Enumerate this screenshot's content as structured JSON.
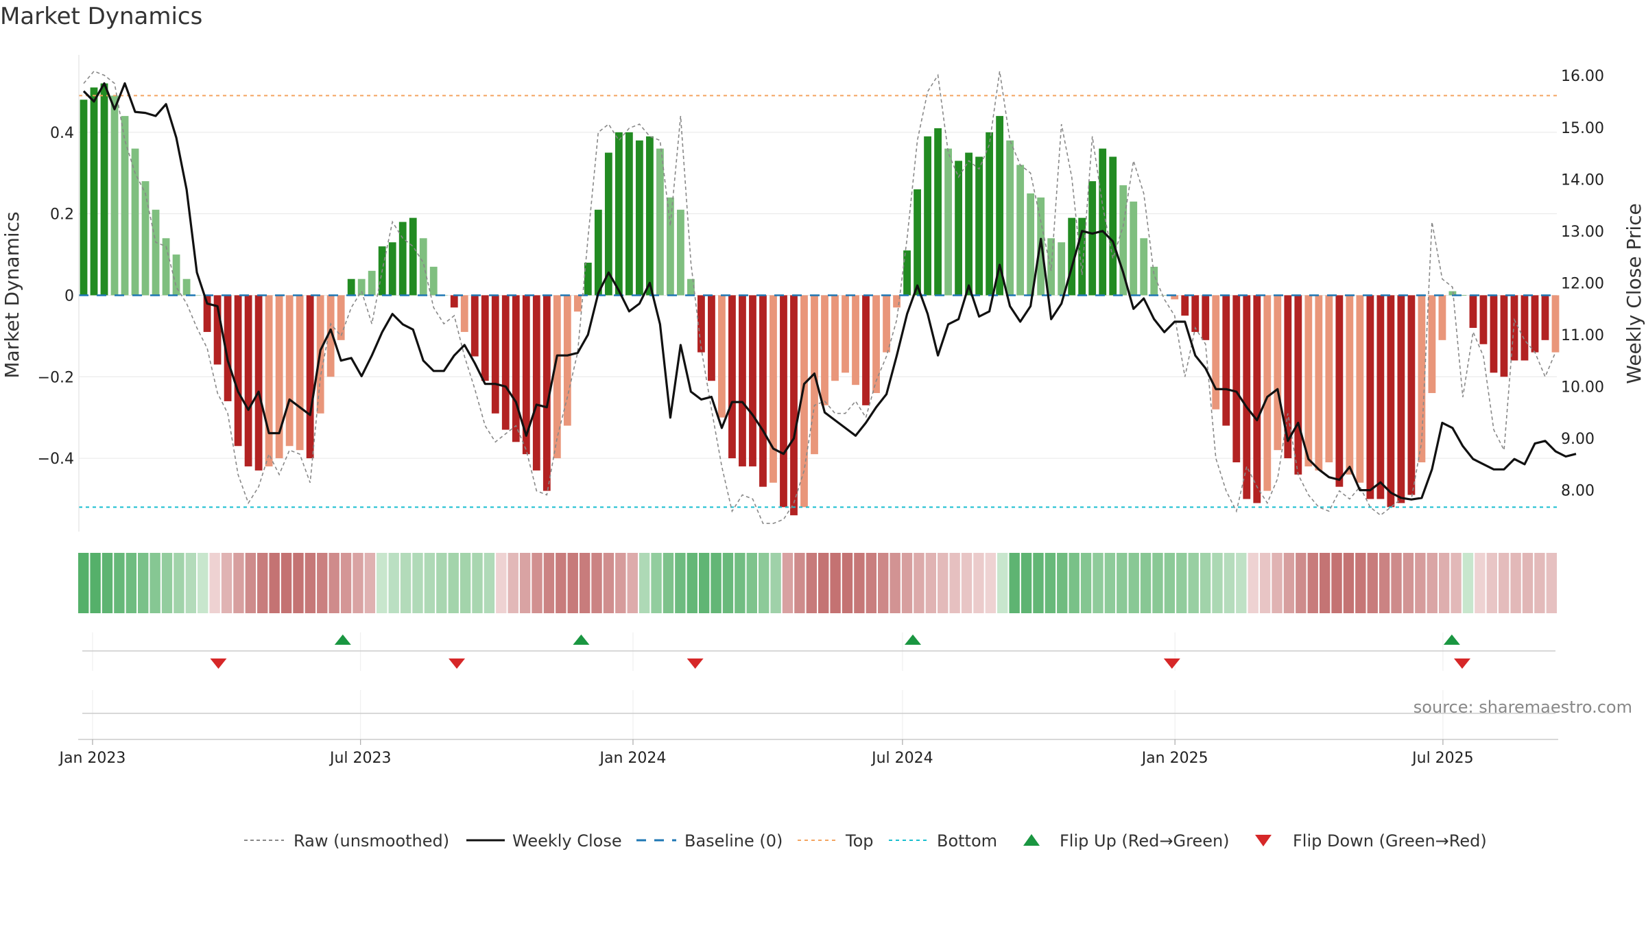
{
  "chart_data": {
    "type": "bar",
    "title": "Market Dynamics",
    "ylabel_left": "Market Dynamics",
    "ylabel_right": "Weekly Close Price",
    "left_axis": {
      "ylim": [
        -0.58,
        0.59
      ],
      "ticks": [
        0.4,
        0.2,
        0,
        -0.2,
        -0.4
      ],
      "tick_labels": [
        "0.4",
        "0.2",
        "0",
        "−0.2",
        "−0.4"
      ]
    },
    "right_axis": {
      "ylim": [
        7.2,
        16.4
      ],
      "ticks": [
        16,
        15,
        14,
        13,
        12,
        11,
        10,
        9,
        8
      ],
      "tick_labels": [
        "16.00",
        "15.00",
        "14.00",
        "13.00",
        "12.00",
        "11.00",
        "10.00",
        "9.00",
        "8.00"
      ]
    },
    "x_axis": {
      "start": "2022-12-26",
      "end": "2025-09-15",
      "tick_labels": [
        "Jan 2023",
        "Jul 2023",
        "Jan 2024",
        "Jul 2024",
        "Jan 2025",
        "Jul 2025"
      ],
      "tick_dates": [
        "2023-01-01",
        "2023-07-01",
        "2024-01-01",
        "2024-07-01",
        "2025-01-01",
        "2025-07-01"
      ]
    },
    "top_line": 0.49,
    "bottom_line": -0.52,
    "baseline": 0,
    "colors": {
      "strong_green": "#228B22",
      "light_green": "#7FBF7F",
      "strong_red": "#B22222",
      "light_red": "#E9967A",
      "weekly_close": "#111111",
      "raw": "#888888",
      "baseline": "#1F77B4",
      "top": "#F4A460",
      "bottom": "#17BECF",
      "flip_up": "#1A9641",
      "flip_down": "#D62728"
    },
    "bar_values": [
      0.48,
      0.51,
      0.52,
      0.49,
      0.44,
      0.36,
      0.28,
      0.21,
      0.14,
      0.1,
      0.04,
      0,
      -0.09,
      -0.17,
      -0.26,
      -0.37,
      -0.42,
      -0.43,
      -0.42,
      -0.4,
      -0.37,
      -0.38,
      -0.4,
      -0.29,
      -0.2,
      -0.11,
      0.04,
      0.04,
      0.06,
      0.12,
      0.13,
      0.18,
      0.19,
      0.14,
      0.07,
      0,
      -0.03,
      -0.09,
      -0.15,
      -0.21,
      -0.29,
      -0.33,
      -0.36,
      -0.39,
      -0.43,
      -0.48,
      -0.4,
      -0.32,
      -0.04,
      0.08,
      0.21,
      0.35,
      0.4,
      0.4,
      0.38,
      0.39,
      0.36,
      0.24,
      0.21,
      0.04,
      -0.14,
      -0.21,
      -0.3,
      -0.4,
      -0.42,
      -0.42,
      -0.47,
      -0.46,
      -0.52,
      -0.54,
      -0.52,
      -0.39,
      -0.27,
      -0.21,
      -0.19,
      -0.22,
      -0.27,
      -0.24,
      -0.14,
      -0.03,
      0.11,
      0.26,
      0.39,
      0.41,
      0.36,
      0.33,
      0.35,
      0.34,
      0.4,
      0.44,
      0.38,
      0.32,
      0.25,
      0.24,
      0.14,
      0.13,
      0.19,
      0.19,
      0.28,
      0.36,
      0.34,
      0.27,
      0.23,
      0.14,
      0.07,
      0,
      -0.01,
      -0.05,
      -0.09,
      -0.11,
      -0.28,
      -0.32,
      -0.41,
      -0.5,
      -0.51,
      -0.48,
      -0.38,
      -0.4,
      -0.44,
      -0.42,
      -0.43,
      -0.41,
      -0.47,
      -0.44,
      -0.46,
      -0.5,
      -0.5,
      -0.52,
      -0.51,
      -0.49,
      -0.41,
      -0.24,
      -0.11,
      0.01,
      0,
      -0.08,
      -0.12,
      -0.19,
      -0.2,
      -0.16,
      -0.16,
      -0.14,
      -0.11,
      -0.14
    ],
    "bar_strength": [
      "s",
      "s",
      "s",
      "l",
      "l",
      "l",
      "l",
      "l",
      "l",
      "l",
      "l",
      "l",
      "s",
      "s",
      "s",
      "s",
      "s",
      "s",
      "l",
      "l",
      "l",
      "l",
      "s",
      "l",
      "l",
      "l",
      "s",
      "l",
      "l",
      "s",
      "s",
      "s",
      "s",
      "l",
      "l",
      "l",
      "s",
      "l",
      "s",
      "s",
      "s",
      "s",
      "s",
      "s",
      "s",
      "s",
      "l",
      "l",
      "l",
      "s",
      "s",
      "s",
      "s",
      "s",
      "s",
      "s",
      "l",
      "l",
      "l",
      "l",
      "s",
      "s",
      "l",
      "s",
      "s",
      "s",
      "s",
      "l",
      "s",
      "s",
      "l",
      "l",
      "l",
      "l",
      "l",
      "l",
      "s",
      "l",
      "l",
      "l",
      "s",
      "s",
      "s",
      "s",
      "l",
      "s",
      "s",
      "s",
      "s",
      "s",
      "l",
      "l",
      "l",
      "l",
      "l",
      "l",
      "s",
      "s",
      "s",
      "s",
      "s",
      "l",
      "l",
      "l",
      "l",
      "l",
      "l",
      "s",
      "s",
      "s",
      "l",
      "s",
      "s",
      "s",
      "s",
      "l",
      "l",
      "s",
      "s",
      "l",
      "l",
      "l",
      "s",
      "l",
      "l",
      "s",
      "s",
      "s",
      "s",
      "s",
      "l",
      "l",
      "l",
      "l",
      "s",
      "s",
      "s",
      "s",
      "s",
      "s",
      "s",
      "s",
      "s"
    ],
    "weekly_close": [
      15.7,
      15.5,
      15.85,
      15.35,
      15.85,
      15.3,
      15.28,
      15.22,
      15.45,
      14.8,
      13.8,
      12.2,
      11.6,
      11.55,
      10.5,
      9.9,
      9.55,
      9.9,
      9.1,
      9.1,
      9.75,
      9.6,
      9.45,
      10.7,
      11.1,
      10.5,
      10.55,
      10.2,
      10.6,
      11.05,
      11.4,
      11.2,
      11.1,
      10.5,
      10.3,
      10.3,
      10.6,
      10.8,
      10.45,
      10.05,
      10.05,
      10.0,
      9.7,
      9.05,
      9.65,
      9.6,
      10.6,
      10.6,
      10.65,
      11.0,
      11.8,
      12.2,
      11.85,
      11.45,
      11.6,
      12.0,
      11.2,
      9.4,
      10.8,
      9.9,
      9.75,
      9.8,
      9.2,
      9.7,
      9.7,
      9.45,
      9.15,
      8.8,
      8.7,
      9.0,
      10.05,
      10.25,
      9.5,
      9.35,
      9.2,
      9.05,
      9.3,
      9.6,
      9.85,
      10.6,
      11.4,
      11.95,
      11.4,
      10.6,
      11.2,
      11.3,
      11.95,
      11.35,
      11.45,
      12.35,
      11.55,
      11.25,
      11.55,
      12.85,
      11.3,
      11.6,
      12.3,
      13.0,
      12.95,
      13.0,
      12.8,
      12.2,
      11.5,
      11.7,
      11.3,
      11.05,
      11.25,
      11.25,
      10.6,
      10.35,
      9.95,
      9.95,
      9.9,
      9.6,
      9.35,
      9.8,
      9.95,
      8.95,
      9.3,
      8.6,
      8.4,
      8.25,
      8.2,
      8.45,
      8.0,
      8.0,
      8.15,
      7.95,
      7.85,
      7.82,
      7.85,
      8.4,
      9.3,
      9.2,
      8.85,
      8.6,
      8.5,
      8.4,
      8.4,
      8.6,
      8.5,
      8.9,
      8.95,
      8.75,
      8.65,
      8.7
    ],
    "raw_values": [
      0.52,
      0.55,
      0.54,
      0.52,
      0.38,
      0.3,
      0.25,
      0.13,
      0.12,
      0.02,
      -0.02,
      -0.08,
      -0.13,
      -0.24,
      -0.29,
      -0.44,
      -0.51,
      -0.47,
      -0.39,
      -0.44,
      -0.38,
      -0.39,
      -0.46,
      -0.2,
      -0.07,
      -0.1,
      -0.03,
      0.01,
      -0.07,
      0.06,
      0.18,
      0.14,
      0.12,
      0.08,
      -0.03,
      -0.07,
      -0.05,
      -0.15,
      -0.23,
      -0.32,
      -0.36,
      -0.34,
      -0.32,
      -0.38,
      -0.48,
      -0.49,
      -0.35,
      -0.25,
      -0.14,
      0.14,
      0.4,
      0.42,
      0.38,
      0.41,
      0.42,
      0.39,
      0.38,
      0.17,
      0.44,
      0.08,
      -0.13,
      -0.28,
      -0.42,
      -0.53,
      -0.49,
      -0.5,
      -0.56,
      -0.56,
      -0.55,
      -0.51,
      -0.43,
      -0.27,
      -0.26,
      -0.29,
      -0.29,
      -0.26,
      -0.3,
      -0.21,
      -0.15,
      -0.06,
      0.14,
      0.38,
      0.5,
      0.54,
      0.35,
      0.29,
      0.33,
      0.31,
      0.37,
      0.55,
      0.38,
      0.32,
      0.3,
      0.18,
      0.06,
      0.42,
      0.29,
      0.05,
      0.39,
      0.22,
      0.09,
      0.17,
      0.33,
      0.25,
      0.05,
      -0.01,
      -0.05,
      -0.2,
      -0.08,
      -0.12,
      -0.4,
      -0.48,
      -0.53,
      -0.42,
      -0.47,
      -0.51,
      -0.45,
      -0.29,
      -0.44,
      -0.49,
      -0.52,
      -0.53,
      -0.48,
      -0.5,
      -0.47,
      -0.52,
      -0.54,
      -0.52,
      -0.5,
      -0.5,
      -0.36,
      0.18,
      0.04,
      0.02,
      -0.25,
      -0.09,
      -0.15,
      -0.33,
      -0.38,
      -0.06,
      -0.11,
      -0.14,
      -0.2,
      -0.14
    ],
    "regime_colors": [
      "#55B06A",
      "#55B06A",
      "#5EB472",
      "#66B879",
      "#6FBC80",
      "#7AC189",
      "#86C793",
      "#93CD9E",
      "#A1D3AA",
      "#B3DBBA",
      "#C8E6CD",
      "#EED2D2",
      "#E0B3B3",
      "#D79F9F",
      "#CE8B8B",
      "#C87D7D",
      "#C47373",
      "#C47272",
      "#C47373",
      "#C67878",
      "#CA8080",
      "#CF8B8B",
      "#D49696",
      "#D9A3A3",
      "#DFB1B1",
      "#C8E6CD",
      "#BADFC2",
      "#B3DBBA",
      "#B0DAB8",
      "#AED9B6",
      "#A8D6B0",
      "#A3D4AB",
      "#A3D4AB",
      "#A8D6B0",
      "#B0DAB8",
      "#EED2D2",
      "#E2B8B8",
      "#D9A3A3",
      "#D19090",
      "#CB8383",
      "#C87C7C",
      "#C77A7A",
      "#C87C7C",
      "#CB8383",
      "#D08E8E",
      "#D69B9B",
      "#DDABAB",
      "#AED9B6",
      "#92CD9E",
      "#7DC28B",
      "#6DBB7F",
      "#64B777",
      "#60B574",
      "#63B676",
      "#69B97B",
      "#72BD82",
      "#7EC38C",
      "#8DCA99",
      "#9FD1A9",
      "#D8A1A1",
      "#CE8B8B",
      "#C77A7A",
      "#C47373",
      "#C47272",
      "#C47373",
      "#C67777",
      "#C97E7E",
      "#CD8888",
      "#D29393",
      "#D79F9F",
      "#DCAAAA",
      "#E0B3B3",
      "#E3BABA",
      "#E6C0C0",
      "#E8C5C5",
      "#EBCBCB",
      "#EED2D2",
      "#C8E6CD",
      "#5EB472",
      "#5EB472",
      "#62B675",
      "#68B97A",
      "#70BC80",
      "#79C188",
      "#84C691",
      "#8FCB9B",
      "#8ECB9A",
      "#8BC997",
      "#89C895",
      "#88C794",
      "#89C895",
      "#8CCA98",
      "#91CC9C",
      "#98CFA2",
      "#A1D3AA",
      "#ABD8B3",
      "#B5DCBC",
      "#BFE1C5",
      "#EED2D2",
      "#E8C5C5",
      "#E0B3B3",
      "#D79F9F",
      "#CE8B8B",
      "#C87C7C",
      "#C47474",
      "#C47272",
      "#C47373",
      "#C67676",
      "#C87C7C",
      "#CB8383",
      "#CE8B8B",
      "#D29494",
      "#D69C9C",
      "#DAA5A5",
      "#DEAEAE",
      "#E2B8B8",
      "#C8E6CD",
      "#EED2D2",
      "#E8C5C5",
      "#E4BCBC",
      "#E2B8B8",
      "#E1B6B6",
      "#E3BABA",
      "#E6C0C0"
    ],
    "flip_up_dates": [
      "2023-06-19",
      "2023-11-27",
      "2024-07-08",
      "2025-07-07"
    ],
    "flip_down_dates": [
      "2023-03-27",
      "2023-09-04",
      "2024-02-12",
      "2024-12-30",
      "2025-07-14"
    ],
    "legend": [
      "Raw (unsmoothed)",
      "Weekly Close",
      "Baseline (0)",
      "Top",
      "Bottom",
      "Flip Up (Red→Green)",
      "Flip Down (Green→Red)"
    ],
    "source": "source: sharemaestro.com"
  }
}
